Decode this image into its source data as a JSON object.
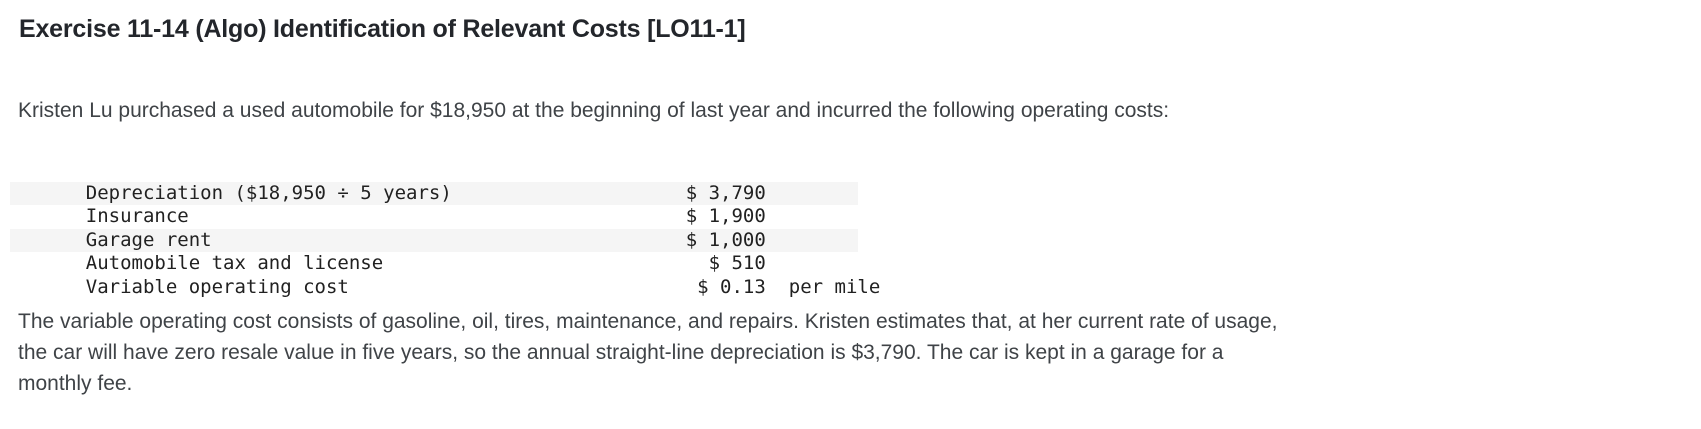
{
  "colors": {
    "background": "#ffffff",
    "heading_text": "#23262b",
    "body_text": "#3f4347",
    "table_text": "#212121",
    "table_stripe": "#f5f5f5"
  },
  "exercise": {
    "title": "Exercise 11-14 (Algo) Identification of Relevant Costs [LO11-1]",
    "intro": "Kristen Lu purchased a used automobile for $18,950 at the beginning of last year and incurred the following operating costs:",
    "costs_table": {
      "rows": [
        {
          "label": "Depreciation ($18,950 ÷ 5 years)",
          "amount": "$ 3,790",
          "suffix": ""
        },
        {
          "label": "Insurance",
          "amount": "$ 1,900",
          "suffix": ""
        },
        {
          "label": "Garage rent",
          "amount": "$ 1,000",
          "suffix": ""
        },
        {
          "label": "Automobile tax and license",
          "amount": "$ 510",
          "suffix": ""
        },
        {
          "label": "Variable operating cost",
          "amount": "$ 0.13",
          "suffix": "per mile"
        }
      ]
    },
    "description": "The variable operating cost consists of gasoline, oil, tires, maintenance, and repairs. Kristen estimates that, at her current rate of usage,\nthe car will have zero resale value in five years, so the annual straight-line depreciation is $3,790. The car is kept in a garage for a\nmonthly fee."
  }
}
